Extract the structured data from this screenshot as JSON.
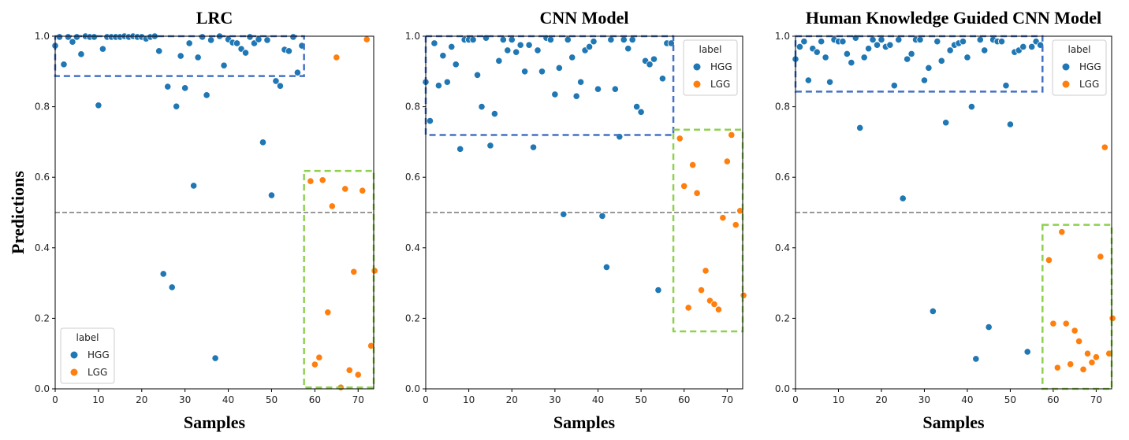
{
  "chart_data": [
    {
      "type": "scatter",
      "title": "LRC",
      "xlabel": "Samples",
      "ylabel": "Predictions",
      "xlim": [
        0,
        73.6
      ],
      "ylim": [
        0,
        1.0
      ],
      "xticks": [
        0,
        10,
        20,
        30,
        40,
        50,
        60,
        70
      ],
      "yticks": [
        0.0,
        0.2,
        0.4,
        0.6,
        0.8,
        1.0
      ],
      "threshold": 0.5,
      "legend": {
        "title": "label",
        "placement": "lower-left",
        "entries": [
          "HGG",
          "LGG"
        ]
      },
      "series": [
        {
          "name": "HGG",
          "color": "#1f77b4",
          "x_start": 0,
          "values": [
            0.973,
            0.998,
            0.92,
            0.998,
            0.984,
            0.998,
            0.949,
            1.0,
            0.998,
            0.998,
            0.804,
            0.964,
            0.998,
            0.998,
            0.998,
            0.998,
            1.0,
            0.998,
            1.0,
            0.998,
            0.998,
            0.993,
            0.998,
            1.0,
            0.958,
            0.326,
            0.857,
            0.288,
            0.801,
            0.944,
            0.853,
            0.98,
            0.576,
            0.94,
            0.998,
            0.833,
            0.989,
            0.087,
            1.0,
            0.917,
            0.991,
            0.982,
            0.98,
            0.964,
            0.953,
            0.998,
            0.98,
            0.991,
            0.699,
            0.989,
            0.549,
            0.873,
            0.859,
            0.962,
            0.958,
            0.998,
            0.897,
            0.973
          ]
        },
        {
          "name": "LGG",
          "color": "#ff7f0e",
          "x": [
            60,
            59,
            61,
            61.8,
            63,
            64,
            65,
            66,
            67,
            68,
            69,
            70,
            71,
            72,
            73,
            73.8
          ],
          "values": [
            0.069,
            0.589,
            0.089,
            0.592,
            0.217,
            0.518,
            0.94,
            0.004,
            0.567,
            0.053,
            0.332,
            0.04,
            0.562,
            0.991,
            0.122,
            0.335
          ]
        }
      ],
      "highlight_boxes": [
        {
          "color": "#4472c4",
          "x": [
            0,
            57.5
          ],
          "y": [
            0.887,
            1.0
          ]
        },
        {
          "color": "#8fd14f",
          "x": [
            57.5,
            73.6
          ],
          "y": [
            0.004,
            0.618
          ]
        }
      ]
    },
    {
      "type": "scatter",
      "title": "CNN Model",
      "xlabel": "Samples",
      "ylabel": "",
      "xlim": [
        0,
        73.6
      ],
      "ylim": [
        0,
        1.0
      ],
      "xticks": [
        0,
        10,
        20,
        30,
        40,
        50,
        60,
        70
      ],
      "yticks": [
        0.0,
        0.2,
        0.4,
        0.6,
        0.8,
        1.0
      ],
      "threshold": 0.5,
      "legend": {
        "title": "label",
        "placement": "upper-right",
        "entries": [
          "HGG",
          "LGG"
        ]
      },
      "series": [
        {
          "name": "HGG",
          "color": "#1f77b4",
          "x_start": 0,
          "values": [
            0.87,
            0.76,
            0.98,
            0.86,
            0.945,
            0.87,
            0.97,
            0.92,
            0.68,
            0.99,
            0.99,
            0.99,
            0.89,
            0.8,
            0.995,
            0.69,
            0.78,
            0.93,
            0.99,
            0.96,
            0.99,
            0.955,
            0.975,
            0.9,
            0.975,
            0.685,
            0.96,
            0.9,
            0.995,
            0.99,
            0.835,
            0.91,
            0.495,
            0.99,
            0.94,
            0.83,
            0.87,
            0.96,
            0.97,
            0.985,
            0.85,
            0.49,
            0.345,
            0.99,
            0.85,
            0.715,
            0.99,
            0.965,
            0.99,
            0.8,
            0.785,
            0.93,
            0.92,
            0.935,
            0.28,
            0.88,
            0.98,
            0.98
          ]
        },
        {
          "name": "LGG",
          "color": "#ff7f0e",
          "x": [
            59,
            60,
            61,
            62,
            63,
            64,
            65,
            66,
            67,
            68,
            69,
            70,
            71,
            72,
            73,
            73.8
          ],
          "values": [
            0.71,
            0.575,
            0.23,
            0.635,
            0.555,
            0.28,
            0.335,
            0.25,
            0.24,
            0.225,
            0.485,
            0.645,
            0.72,
            0.465,
            0.505,
            0.265
          ]
        }
      ],
      "highlight_boxes": [
        {
          "color": "#4472c4",
          "x": [
            0,
            57.5
          ],
          "y": [
            0.72,
            1.0
          ]
        },
        {
          "color": "#8fd14f",
          "x": [
            57.5,
            73.6
          ],
          "y": [
            0.163,
            0.735
          ]
        }
      ]
    },
    {
      "type": "scatter",
      "title": "Human Knowledge Guided CNN Model",
      "xlabel": "Samples",
      "ylabel": "",
      "xlim": [
        0,
        73.6
      ],
      "ylim": [
        0,
        1.0
      ],
      "xticks": [
        0,
        10,
        20,
        30,
        40,
        50,
        60,
        70
      ],
      "yticks": [
        0.0,
        0.2,
        0.4,
        0.6,
        0.8,
        1.0
      ],
      "threshold": 0.5,
      "legend": {
        "title": "label",
        "placement": "upper-right",
        "entries": [
          "HGG",
          "LGG"
        ]
      },
      "series": [
        {
          "name": "HGG",
          "color": "#1f77b4",
          "x_start": 0,
          "values": [
            0.935,
            0.97,
            0.985,
            0.875,
            0.965,
            0.955,
            0.985,
            0.94,
            0.87,
            0.99,
            0.985,
            0.985,
            0.95,
            0.925,
            0.995,
            0.74,
            0.94,
            0.965,
            0.99,
            0.975,
            0.99,
            0.97,
            0.975,
            0.86,
            0.99,
            0.54,
            0.935,
            0.95,
            0.99,
            0.99,
            0.875,
            0.91,
            0.22,
            0.985,
            0.93,
            0.755,
            0.96,
            0.975,
            0.98,
            0.985,
            0.94,
            0.8,
            0.085,
            0.99,
            0.96,
            0.175,
            0.99,
            0.985,
            0.985,
            0.86,
            0.75,
            0.955,
            0.96,
            0.97,
            0.105,
            0.97,
            0.985,
            0.975
          ]
        },
        {
          "name": "LGG",
          "color": "#ff7f0e",
          "x": [
            59,
            60,
            61,
            62,
            63,
            64,
            65,
            66,
            67,
            68,
            69,
            70,
            71,
            72,
            73,
            73.8
          ],
          "values": [
            0.365,
            0.185,
            0.06,
            0.445,
            0.185,
            0.07,
            0.165,
            0.135,
            0.055,
            0.1,
            0.075,
            0.09,
            0.375,
            0.685,
            0.1,
            0.2
          ]
        }
      ],
      "highlight_boxes": [
        {
          "color": "#4472c4",
          "x": [
            0,
            57.5
          ],
          "y": [
            0.843,
            1.0
          ]
        },
        {
          "color": "#8fd14f",
          "x": [
            57.5,
            73.6
          ],
          "y": [
            0.0,
            0.465
          ]
        }
      ]
    }
  ]
}
